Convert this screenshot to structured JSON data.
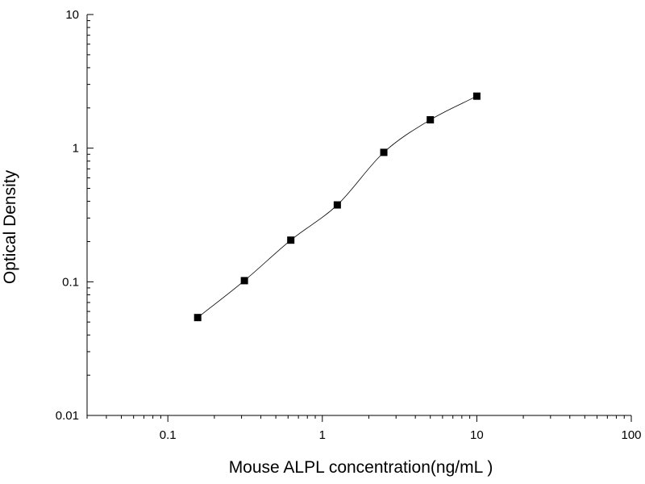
{
  "chart_data": {
    "type": "scatter",
    "xlabel": "Mouse ALPL concentration(ng/mL )",
    "ylabel": "Optical Density",
    "x_scale": "log",
    "y_scale": "log",
    "xlim": [
      0.03,
      100
    ],
    "ylim": [
      0.01,
      10
    ],
    "x_ticks": [
      0.1,
      1,
      10,
      100
    ],
    "x_tick_labels": [
      "0.1",
      "1",
      "10",
      "100"
    ],
    "y_ticks": [
      0.01,
      0.1,
      1,
      10
    ],
    "y_tick_labels": [
      "0.01",
      "0.1",
      "1",
      "10"
    ],
    "grid": false,
    "legend": "none",
    "series": [
      {
        "marker": "square",
        "color": "#000000",
        "x": [
          0.156,
          0.313,
          0.625,
          1.25,
          2.5,
          5,
          10
        ],
        "y": [
          0.054,
          0.102,
          0.205,
          0.376,
          0.93,
          1.63,
          2.45
        ],
        "fit_curve": true
      }
    ]
  }
}
